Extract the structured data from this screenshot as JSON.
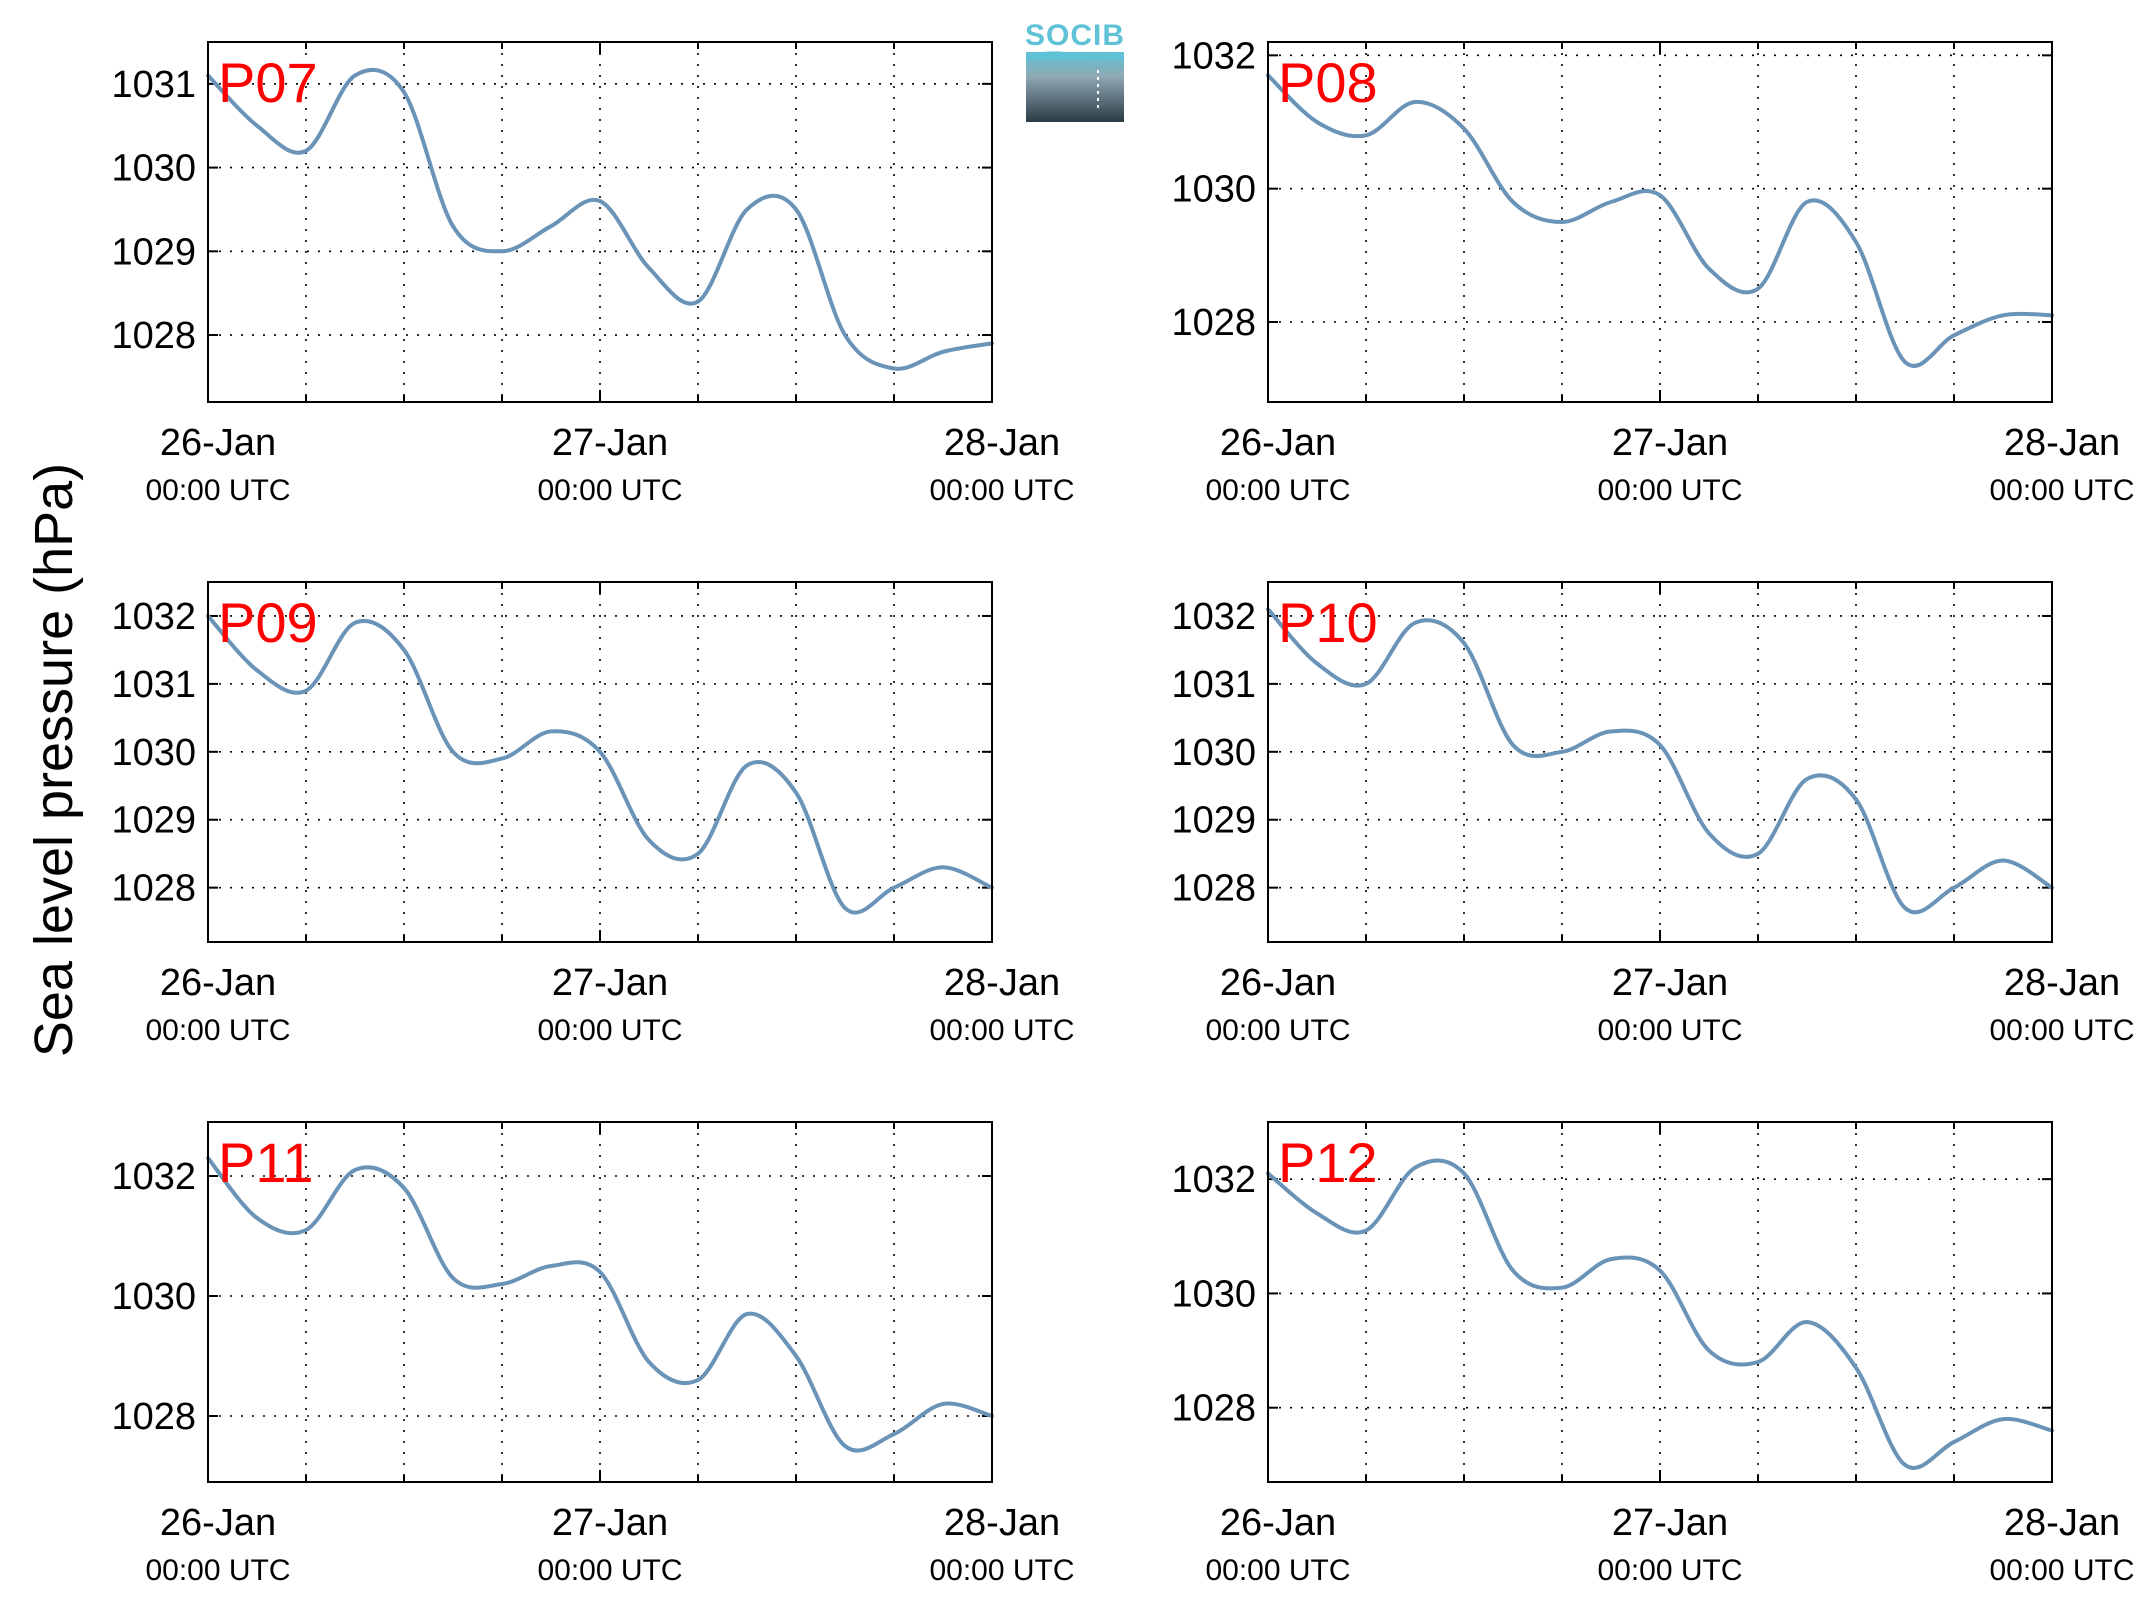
{
  "figure": {
    "ylabel": "Sea level pressure (hPa)",
    "logo_text": "SOCIB"
  },
  "colors": {
    "line": "#6a93b8",
    "panel_label": "#ff0000",
    "axes": "#000000",
    "logo_top": "#5fc2d6",
    "logo_bottom": "#2b3a44"
  },
  "chart_data": [
    {
      "type": "line",
      "panel_label": "P07",
      "x": [
        "26-Jan 00:00",
        "26-Jan 03:00",
        "26-Jan 06:00",
        "26-Jan 09:00",
        "26-Jan 12:00",
        "26-Jan 15:00",
        "26-Jan 18:00",
        "26-Jan 21:00",
        "27-Jan 00:00",
        "27-Jan 03:00",
        "27-Jan 06:00",
        "27-Jan 09:00",
        "27-Jan 12:00",
        "27-Jan 15:00",
        "27-Jan 18:00",
        "27-Jan 21:00",
        "28-Jan 00:00"
      ],
      "series": [
        {
          "values": [
            1031.1,
            1030.5,
            1030.2,
            1031.1,
            1030.9,
            1029.3,
            1029.0,
            1029.3,
            1029.6,
            1028.8,
            1028.4,
            1029.5,
            1029.5,
            1028.0,
            1027.6,
            1027.8,
            1027.9
          ]
        }
      ],
      "ylim": [
        1027.2,
        1031.5
      ],
      "yticks": [
        "1028",
        "1029",
        "1030",
        "1031"
      ],
      "xticks": [
        {
          "day": "26-Jan",
          "time": "00:00 UTC"
        },
        {
          "day": "27-Jan",
          "time": "00:00 UTC"
        },
        {
          "day": "28-Jan",
          "time": "00:00 UTC"
        }
      ],
      "grid": true
    },
    {
      "type": "line",
      "panel_label": "P08",
      "x": [
        "26-Jan 00:00",
        "26-Jan 03:00",
        "26-Jan 06:00",
        "26-Jan 09:00",
        "26-Jan 12:00",
        "26-Jan 15:00",
        "26-Jan 18:00",
        "26-Jan 21:00",
        "27-Jan 00:00",
        "27-Jan 03:00",
        "27-Jan 06:00",
        "27-Jan 09:00",
        "27-Jan 12:00",
        "27-Jan 15:00",
        "27-Jan 18:00",
        "27-Jan 21:00",
        "28-Jan 00:00"
      ],
      "series": [
        {
          "values": [
            1031.7,
            1031.0,
            1030.8,
            1031.3,
            1030.9,
            1029.8,
            1029.5,
            1029.8,
            1029.9,
            1028.8,
            1028.5,
            1029.8,
            1029.2,
            1027.4,
            1027.8,
            1028.1,
            1028.1
          ]
        }
      ],
      "ylim": [
        1026.8,
        1032.2
      ],
      "yticks": [
        "1028",
        "1030",
        "1032"
      ],
      "xticks": [
        {
          "day": "26-Jan",
          "time": "00:00 UTC"
        },
        {
          "day": "27-Jan",
          "time": "00:00 UTC"
        },
        {
          "day": "28-Jan",
          "time": "00:00 UTC"
        }
      ],
      "grid": true
    },
    {
      "type": "line",
      "panel_label": "P09",
      "x": [
        "26-Jan 00:00",
        "26-Jan 03:00",
        "26-Jan 06:00",
        "26-Jan 09:00",
        "26-Jan 12:00",
        "26-Jan 15:00",
        "26-Jan 18:00",
        "26-Jan 21:00",
        "27-Jan 00:00",
        "27-Jan 03:00",
        "27-Jan 06:00",
        "27-Jan 09:00",
        "27-Jan 12:00",
        "27-Jan 15:00",
        "27-Jan 18:00",
        "27-Jan 21:00",
        "28-Jan 00:00"
      ],
      "series": [
        {
          "values": [
            1032.0,
            1031.2,
            1030.9,
            1031.9,
            1031.5,
            1030.0,
            1029.9,
            1030.3,
            1030.0,
            1028.7,
            1028.5,
            1029.8,
            1029.4,
            1027.7,
            1028.0,
            1028.3,
            1028.0
          ]
        }
      ],
      "ylim": [
        1027.2,
        1032.5
      ],
      "yticks": [
        "1028",
        "1029",
        "1030",
        "1031",
        "1032"
      ],
      "xticks": [
        {
          "day": "26-Jan",
          "time": "00:00 UTC"
        },
        {
          "day": "27-Jan",
          "time": "00:00 UTC"
        },
        {
          "day": "28-Jan",
          "time": "00:00 UTC"
        }
      ],
      "grid": true
    },
    {
      "type": "line",
      "panel_label": "P10",
      "x": [
        "26-Jan 00:00",
        "26-Jan 03:00",
        "26-Jan 06:00",
        "26-Jan 09:00",
        "26-Jan 12:00",
        "26-Jan 15:00",
        "26-Jan 18:00",
        "26-Jan 21:00",
        "27-Jan 00:00",
        "27-Jan 03:00",
        "27-Jan 06:00",
        "27-Jan 09:00",
        "27-Jan 12:00",
        "27-Jan 15:00",
        "27-Jan 18:00",
        "27-Jan 21:00",
        "28-Jan 00:00"
      ],
      "series": [
        {
          "values": [
            1032.1,
            1031.3,
            1031.0,
            1031.9,
            1031.6,
            1030.1,
            1030.0,
            1030.3,
            1030.1,
            1028.8,
            1028.5,
            1029.6,
            1029.3,
            1027.7,
            1028.0,
            1028.4,
            1028.0
          ]
        }
      ],
      "ylim": [
        1027.2,
        1032.5
      ],
      "yticks": [
        "1028",
        "1029",
        "1030",
        "1031",
        "1032"
      ],
      "xticks": [
        {
          "day": "26-Jan",
          "time": "00:00 UTC"
        },
        {
          "day": "27-Jan",
          "time": "00:00 UTC"
        },
        {
          "day": "28-Jan",
          "time": "00:00 UTC"
        }
      ],
      "grid": true
    },
    {
      "type": "line",
      "panel_label": "P11",
      "x": [
        "26-Jan 00:00",
        "26-Jan 03:00",
        "26-Jan 06:00",
        "26-Jan 09:00",
        "26-Jan 12:00",
        "26-Jan 15:00",
        "26-Jan 18:00",
        "26-Jan 21:00",
        "27-Jan 00:00",
        "27-Jan 03:00",
        "27-Jan 06:00",
        "27-Jan 09:00",
        "27-Jan 12:00",
        "27-Jan 15:00",
        "27-Jan 18:00",
        "27-Jan 21:00",
        "28-Jan 00:00"
      ],
      "series": [
        {
          "values": [
            1032.3,
            1031.3,
            1031.1,
            1032.1,
            1031.8,
            1030.3,
            1030.2,
            1030.5,
            1030.4,
            1028.9,
            1028.6,
            1029.7,
            1029.0,
            1027.5,
            1027.7,
            1028.2,
            1028.0
          ]
        }
      ],
      "ylim": [
        1026.9,
        1032.9
      ],
      "yticks": [
        "1028",
        "1030",
        "1032"
      ],
      "xticks": [
        {
          "day": "26-Jan",
          "time": "00:00 UTC"
        },
        {
          "day": "27-Jan",
          "time": "00:00 UTC"
        },
        {
          "day": "28-Jan",
          "time": "00:00 UTC"
        }
      ],
      "grid": true
    },
    {
      "type": "line",
      "panel_label": "P12",
      "x": [
        "26-Jan 00:00",
        "26-Jan 03:00",
        "26-Jan 06:00",
        "26-Jan 09:00",
        "26-Jan 12:00",
        "26-Jan 15:00",
        "26-Jan 18:00",
        "26-Jan 21:00",
        "27-Jan 00:00",
        "27-Jan 03:00",
        "27-Jan 06:00",
        "27-Jan 09:00",
        "27-Jan 12:00",
        "27-Jan 15:00",
        "27-Jan 18:00",
        "27-Jan 21:00",
        "28-Jan 00:00"
      ],
      "series": [
        {
          "values": [
            1032.1,
            1031.4,
            1031.1,
            1032.2,
            1032.1,
            1030.4,
            1030.1,
            1030.6,
            1030.4,
            1029.0,
            1028.8,
            1029.5,
            1028.7,
            1027.0,
            1027.4,
            1027.8,
            1027.6
          ]
        }
      ],
      "ylim": [
        1026.7,
        1033.0
      ],
      "yticks": [
        "1028",
        "1030",
        "1032"
      ],
      "xticks": [
        {
          "day": "26-Jan",
          "time": "00:00 UTC"
        },
        {
          "day": "27-Jan",
          "time": "00:00 UTC"
        },
        {
          "day": "28-Jan",
          "time": "00:00 UTC"
        }
      ],
      "grid": true
    }
  ]
}
